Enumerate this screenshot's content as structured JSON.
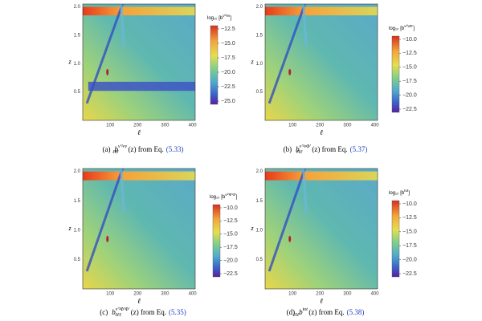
{
  "axes": {
    "x_label": "ℓ",
    "y_label": "z",
    "xticks": [
      "100",
      "200",
      "300",
      "400"
    ],
    "yticks": [
      "0.5",
      "1.0",
      "1.5",
      "2.0"
    ]
  },
  "figures": [
    {
      "colorbar_label": {
        "prefix": "log₁₀ [b",
        "sup": "ν′²νν",
        "suffix": "]"
      },
      "colorbar_ticks": [
        "−12.5",
        "−15.0",
        "−17.5",
        "−20.0",
        "−22.5",
        "−25.0"
      ],
      "caption": {
        "tag": "(a)",
        "symbol": "b",
        "sub": "ℓℓℓ",
        "sup": "ν′²νν",
        "text": "(z) from Eq.",
        "ref": "(5.33)"
      }
    },
    {
      "colorbar_label": {
        "prefix": "log₁₀ [b",
        "sup": "ν′²νΦ′",
        "suffix": "]"
      },
      "colorbar_ticks": [
        "−10.0",
        "−12.5",
        "−15.0",
        "−17.5",
        "−20.0",
        "−22.5"
      ],
      "caption": {
        "tag": "(b)",
        "symbol": "b",
        "sub": "ℓℓℓ",
        "sup": "ν′²νΦ′",
        "text": "(z) from Eq.",
        "ref": "(5.37)"
      }
    },
    {
      "colorbar_label": {
        "prefix": "log₁₀ [b",
        "sup": "ν′²Φ′Φ′",
        "suffix": "]"
      },
      "colorbar_ticks": [
        "−10.0",
        "−12.5",
        "−15.0",
        "−17.5",
        "−20.0",
        "−22.5"
      ],
      "caption": {
        "tag": "(c)",
        "symbol": "b",
        "sub": "ℓℓℓ",
        "sup": "ν′²Φ′Φ′",
        "text": "(z) from Eq.",
        "ref": "(5.35)"
      }
    },
    {
      "colorbar_label": {
        "prefix": "log₁₀ [b",
        "sup": "tot",
        "suffix": "]"
      },
      "colorbar_ticks": [
        "−10.0",
        "−12.5",
        "−15.0",
        "−17.5",
        "−20.0",
        "−22.5"
      ],
      "caption": {
        "tag": "(d)",
        "symbol": "b",
        "sub": "ℓℓℓ",
        "sup": "tot",
        "text": "(z) from Eq.",
        "ref": "(5.38)"
      }
    }
  ]
}
